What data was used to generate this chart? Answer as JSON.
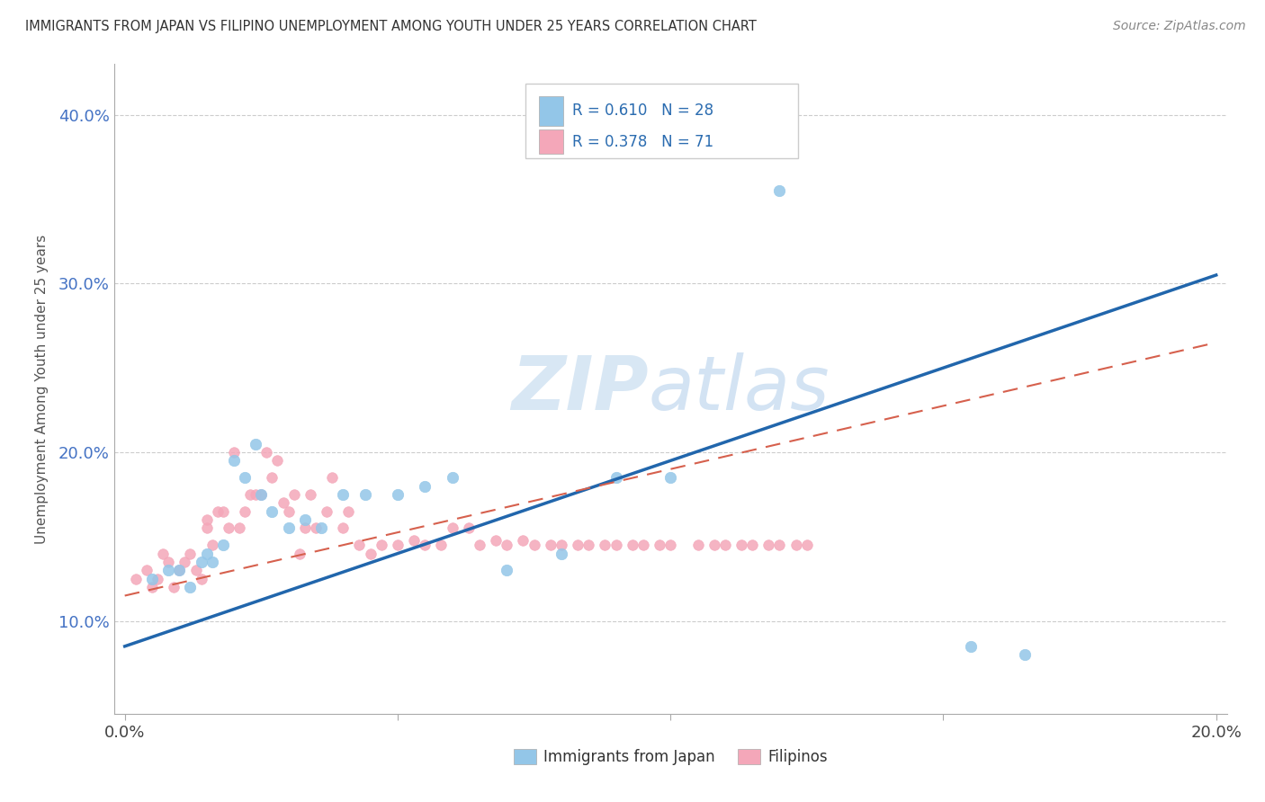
{
  "title": "IMMIGRANTS FROM JAPAN VS FILIPINO UNEMPLOYMENT AMONG YOUTH UNDER 25 YEARS CORRELATION CHART",
  "source": "Source: ZipAtlas.com",
  "ylabel": "Unemployment Among Youth under 25 years",
  "color_japan": "#93c6e8",
  "color_filipinos": "#f4a7b9",
  "color_japan_line": "#2166ac",
  "color_filipinos_line": "#d6604d",
  "watermark_color": "#c8ddf0",
  "japan_x": [
    0.005,
    0.008,
    0.01,
    0.012,
    0.014,
    0.015,
    0.016,
    0.018,
    0.02,
    0.022,
    0.024,
    0.025,
    0.027,
    0.03,
    0.033,
    0.036,
    0.04,
    0.044,
    0.05,
    0.055,
    0.06,
    0.07,
    0.08,
    0.09,
    0.1,
    0.12,
    0.155,
    0.165
  ],
  "japan_y": [
    0.125,
    0.13,
    0.13,
    0.12,
    0.135,
    0.14,
    0.135,
    0.145,
    0.195,
    0.185,
    0.205,
    0.175,
    0.165,
    0.155,
    0.16,
    0.155,
    0.175,
    0.175,
    0.175,
    0.18,
    0.185,
    0.13,
    0.14,
    0.185,
    0.185,
    0.355,
    0.085,
    0.08
  ],
  "filipinos_x": [
    0.002,
    0.004,
    0.005,
    0.006,
    0.007,
    0.008,
    0.009,
    0.01,
    0.011,
    0.012,
    0.013,
    0.014,
    0.015,
    0.015,
    0.016,
    0.017,
    0.018,
    0.019,
    0.02,
    0.021,
    0.022,
    0.023,
    0.024,
    0.025,
    0.026,
    0.027,
    0.028,
    0.029,
    0.03,
    0.031,
    0.032,
    0.033,
    0.034,
    0.035,
    0.037,
    0.038,
    0.04,
    0.041,
    0.043,
    0.045,
    0.047,
    0.05,
    0.053,
    0.055,
    0.058,
    0.06,
    0.063,
    0.065,
    0.068,
    0.07,
    0.073,
    0.075,
    0.078,
    0.08,
    0.083,
    0.085,
    0.088,
    0.09,
    0.093,
    0.095,
    0.098,
    0.1,
    0.105,
    0.108,
    0.11,
    0.113,
    0.115,
    0.118,
    0.12,
    0.123,
    0.125
  ],
  "filipinos_y": [
    0.125,
    0.13,
    0.12,
    0.125,
    0.14,
    0.135,
    0.12,
    0.13,
    0.135,
    0.14,
    0.13,
    0.125,
    0.155,
    0.16,
    0.145,
    0.165,
    0.165,
    0.155,
    0.2,
    0.155,
    0.165,
    0.175,
    0.175,
    0.175,
    0.2,
    0.185,
    0.195,
    0.17,
    0.165,
    0.175,
    0.14,
    0.155,
    0.175,
    0.155,
    0.165,
    0.185,
    0.155,
    0.165,
    0.145,
    0.14,
    0.145,
    0.145,
    0.148,
    0.145,
    0.145,
    0.155,
    0.155,
    0.145,
    0.148,
    0.145,
    0.148,
    0.145,
    0.145,
    0.145,
    0.145,
    0.145,
    0.145,
    0.145,
    0.145,
    0.145,
    0.145,
    0.145,
    0.145,
    0.145,
    0.145,
    0.145,
    0.145,
    0.145,
    0.145,
    0.145,
    0.145
  ],
  "japan_line_x": [
    0.0,
    0.2
  ],
  "japan_line_y": [
    0.085,
    0.305
  ],
  "filipinos_line_x": [
    0.0,
    0.2
  ],
  "filipinos_line_y": [
    0.115,
    0.265
  ],
  "xlim": [
    -0.002,
    0.202
  ],
  "ylim": [
    0.045,
    0.43
  ],
  "xtick_positions": [
    0.0,
    0.05,
    0.1,
    0.15,
    0.2
  ],
  "xtick_labels": [
    "0.0%",
    "",
    "",
    "",
    "20.0%"
  ],
  "ytick_positions": [
    0.1,
    0.2,
    0.3,
    0.4
  ],
  "ytick_labels": [
    "10.0%",
    "20.0%",
    "30.0%",
    "40.0%"
  ]
}
